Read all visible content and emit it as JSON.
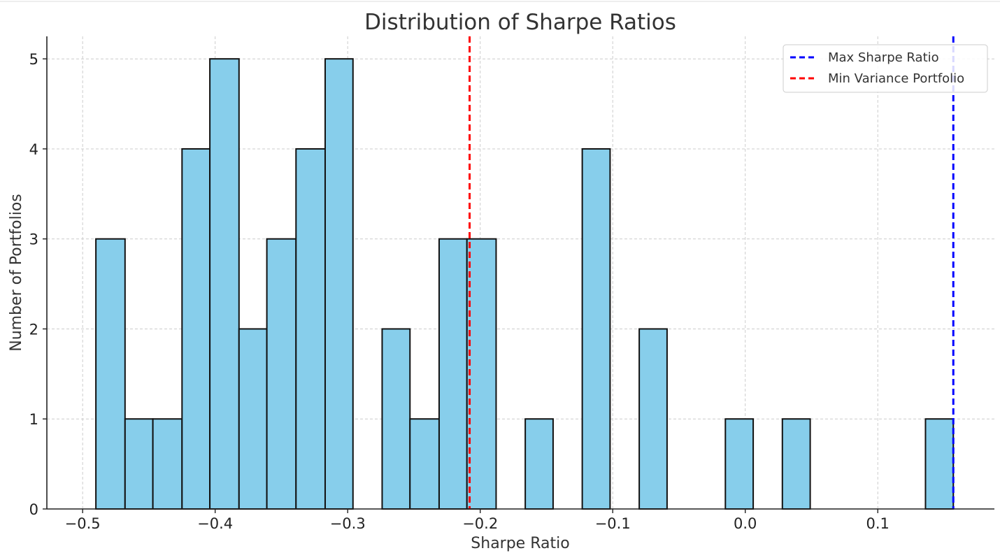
{
  "chart_data": {
    "type": "bar",
    "title": "Distribution of Sharpe Ratios",
    "xlabel": "Sharpe Ratio",
    "ylabel": "Number of Portfolios",
    "xlim": [
      -0.527,
      0.188
    ],
    "ylim": [
      0,
      5.25
    ],
    "xticks": [
      -0.5,
      -0.4,
      -0.3,
      -0.2,
      -0.1,
      0.0,
      0.1
    ],
    "xtick_labels": [
      "−0.5",
      "−0.4",
      "−0.3",
      "−0.2",
      "−0.1",
      "0.0",
      "0.1"
    ],
    "yticks": [
      0,
      1,
      2,
      3,
      4,
      5
    ],
    "ytick_labels": [
      "0",
      "1",
      "2",
      "3",
      "4",
      "5"
    ],
    "grid": true,
    "legend_position": "top-right",
    "bins": [
      {
        "x0": -0.49,
        "x1": -0.468,
        "count": 3
      },
      {
        "x0": -0.468,
        "x1": -0.447,
        "count": 1
      },
      {
        "x0": -0.447,
        "x1": -0.425,
        "count": 1
      },
      {
        "x0": -0.425,
        "x1": -0.404,
        "count": 4
      },
      {
        "x0": -0.404,
        "x1": -0.382,
        "count": 5
      },
      {
        "x0": -0.382,
        "x1": -0.361,
        "count": 2
      },
      {
        "x0": -0.361,
        "x1": -0.339,
        "count": 3
      },
      {
        "x0": -0.339,
        "x1": -0.317,
        "count": 4
      },
      {
        "x0": -0.317,
        "x1": -0.296,
        "count": 5
      },
      {
        "x0": -0.296,
        "x1": -0.274,
        "count": 0
      },
      {
        "x0": -0.274,
        "x1": -0.253,
        "count": 2
      },
      {
        "x0": -0.253,
        "x1": -0.231,
        "count": 1
      },
      {
        "x0": -0.231,
        "x1": -0.21,
        "count": 3
      },
      {
        "x0": -0.21,
        "x1": -0.188,
        "count": 3
      },
      {
        "x0": -0.188,
        "x1": -0.166,
        "count": 0
      },
      {
        "x0": -0.166,
        "x1": -0.145,
        "count": 1
      },
      {
        "x0": -0.145,
        "x1": -0.123,
        "count": 0
      },
      {
        "x0": -0.123,
        "x1": -0.102,
        "count": 4
      },
      {
        "x0": -0.102,
        "x1": -0.08,
        "count": 0
      },
      {
        "x0": -0.08,
        "x1": -0.059,
        "count": 2
      },
      {
        "x0": -0.059,
        "x1": -0.037,
        "count": 0
      },
      {
        "x0": -0.037,
        "x1": -0.015,
        "count": 0
      },
      {
        "x0": -0.015,
        "x1": 0.006,
        "count": 1
      },
      {
        "x0": 0.006,
        "x1": 0.028,
        "count": 0
      },
      {
        "x0": 0.028,
        "x1": 0.049,
        "count": 1
      },
      {
        "x0": 0.049,
        "x1": 0.071,
        "count": 0
      },
      {
        "x0": 0.071,
        "x1": 0.092,
        "count": 0
      },
      {
        "x0": 0.092,
        "x1": 0.114,
        "count": 0
      },
      {
        "x0": 0.114,
        "x1": 0.136,
        "count": 0
      },
      {
        "x0": 0.136,
        "x1": 0.157,
        "count": 1
      }
    ],
    "bar_color": "#87ceeb",
    "edge_color": "#111111",
    "vlines": [
      {
        "name": "Max Sharpe Ratio",
        "x": 0.157,
        "color": "#0000ff"
      },
      {
        "name": "Min Variance Portfolio",
        "x": -0.208,
        "color": "#ff0000"
      }
    ]
  }
}
